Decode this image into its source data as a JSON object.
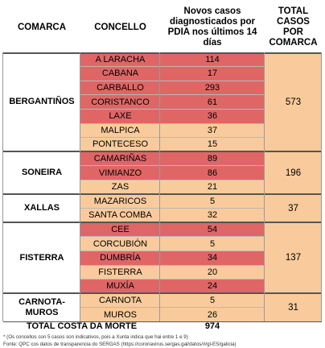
{
  "header": {
    "comarca": "COMARCA",
    "concello": "CONCELLO",
    "casos": "Novos casos diagnosticados por PDIA nos últimos 14 días",
    "total": "TOTAL CASOS POR COMARCA"
  },
  "colors": {
    "red": "#e06666",
    "orange": "#f9cb9c"
  },
  "groups": [
    {
      "comarca": "BERGANTIÑOS",
      "total": "573",
      "rows": [
        {
          "concello": "A LARACHA",
          "casos": "114",
          "color": "red"
        },
        {
          "concello": "CABANA",
          "casos": "17",
          "color": "red"
        },
        {
          "concello": "CARBALLO",
          "casos": "293",
          "color": "red"
        },
        {
          "concello": "CORISTANCO",
          "casos": "61",
          "color": "red"
        },
        {
          "concello": "LAXE",
          "casos": "36",
          "color": "red"
        },
        {
          "concello": "MALPICA",
          "casos": "37",
          "color": "orange"
        },
        {
          "concello": "PONTECESO",
          "casos": "15",
          "color": "orange"
        }
      ]
    },
    {
      "comarca": "SONEIRA",
      "total": "196",
      "rows": [
        {
          "concello": "CAMARIÑAS",
          "casos": "89",
          "color": "red"
        },
        {
          "concello": "VIMIANZO",
          "casos": "86",
          "color": "red"
        },
        {
          "concello": "ZAS",
          "casos": "21",
          "color": "orange"
        }
      ]
    },
    {
      "comarca": "XALLAS",
      "total": "37",
      "rows": [
        {
          "concello": "MAZARICOS",
          "casos": "5",
          "color": "orange"
        },
        {
          "concello": "SANTA COMBA",
          "casos": "32",
          "color": "orange"
        }
      ]
    },
    {
      "comarca": "FISTERRA",
      "total": "137",
      "rows": [
        {
          "concello": "CEE",
          "casos": "54",
          "color": "red"
        },
        {
          "concello": "CORCUBIÓN",
          "casos": "5",
          "color": "orange"
        },
        {
          "concello": "DUMBRÍA",
          "casos": "34",
          "color": "red"
        },
        {
          "concello": "FISTERRA",
          "casos": "20",
          "color": "orange"
        },
        {
          "concello": "MUXÍA",
          "casos": "24",
          "color": "red"
        }
      ]
    },
    {
      "comarca": "CARNOTA-\nMUROS",
      "total": "31",
      "rows": [
        {
          "concello": "CARNOTA",
          "casos": "5",
          "color": "orange"
        },
        {
          "concello": "MUROS",
          "casos": "26",
          "color": "orange"
        }
      ]
    }
  ],
  "footer": {
    "label": "TOTAL COSTA DA MORTE",
    "value": "974"
  },
  "notes": {
    "note1": "* (Os concellos con 5 casos son indicativos, pois a Xunta indica que hai entre 1 e 9)",
    "note2": "Fonte: QPC cos datos de transparencia do SERGAS (https://coronavirus.sergas.gal/datos/#/gl-ES/galicia)"
  }
}
